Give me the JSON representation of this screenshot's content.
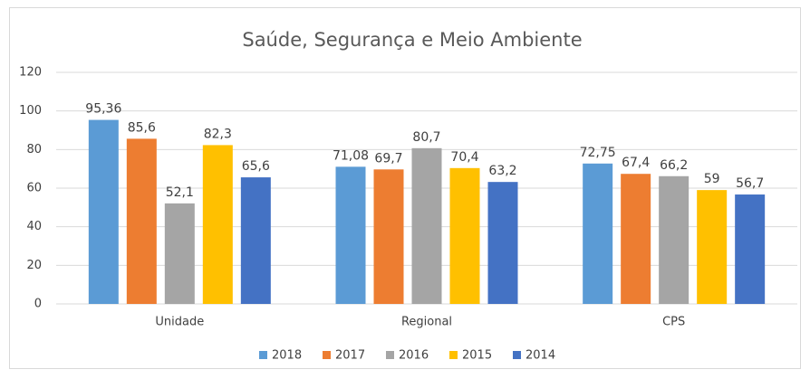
{
  "chart_data": {
    "type": "bar",
    "title": "Saúde, Segurança e Meio Ambiente",
    "categories": [
      "Unidade",
      "Regional",
      "CPS"
    ],
    "series": [
      {
        "name": "2018",
        "color": "#5b9bd5",
        "values": [
          95.36,
          71.08,
          72.75
        ],
        "value_labels": [
          "95,36",
          "71,08",
          "72,75"
        ]
      },
      {
        "name": "2017",
        "color": "#ed7d31",
        "values": [
          85.6,
          69.7,
          67.4
        ],
        "value_labels": [
          "85,6",
          "69,7",
          "67,4"
        ]
      },
      {
        "name": "2016",
        "color": "#a5a5a5",
        "values": [
          52.1,
          80.7,
          66.2
        ],
        "value_labels": [
          "52,1",
          "80,7",
          "66,2"
        ]
      },
      {
        "name": "2015",
        "color": "#ffc000",
        "values": [
          82.3,
          70.4,
          59
        ],
        "value_labels": [
          "82,3",
          "70,4",
          "59"
        ]
      },
      {
        "name": "2014",
        "color": "#4472c4",
        "values": [
          65.6,
          63.2,
          56.7
        ],
        "value_labels": [
          "65,6",
          "63,2",
          "56,7"
        ]
      }
    ],
    "ylim": [
      0,
      120
    ],
    "yticks": [
      0,
      20,
      40,
      60,
      80,
      100,
      120
    ],
    "grid": true,
    "legend": "bottom"
  }
}
